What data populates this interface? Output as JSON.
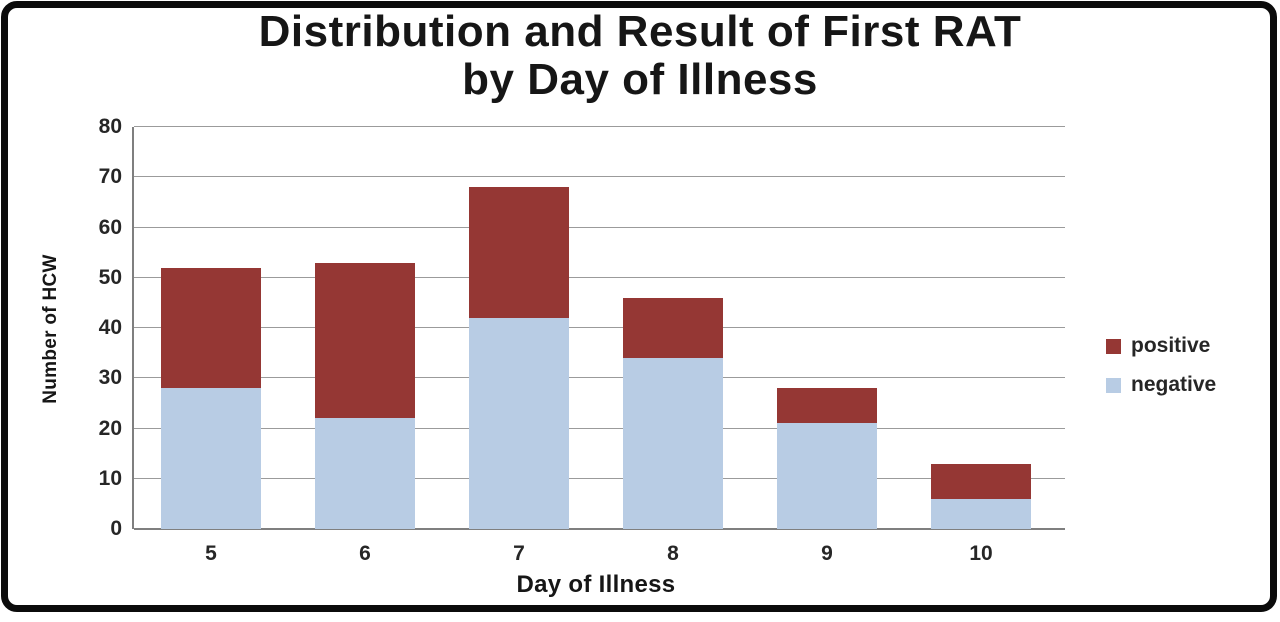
{
  "chart_data": {
    "type": "bar",
    "stacked": true,
    "title_lines": [
      "Distribution and Result of First RAT",
      "by Day of Illness"
    ],
    "xlabel": "Day of Illness",
    "ylabel": "Number of HCW",
    "categories": [
      "5",
      "6",
      "7",
      "8",
      "9",
      "10"
    ],
    "series": [
      {
        "name": "positive",
        "color": "#953734",
        "values": [
          24,
          31,
          26,
          12,
          7,
          7
        ]
      },
      {
        "name": "negative",
        "color": "#B8CCE4",
        "values": [
          28,
          22,
          42,
          34,
          21,
          6
        ]
      }
    ],
    "stack_bottom_to_top": [
      "negative",
      "positive"
    ],
    "totals": [
      52,
      53,
      68,
      46,
      28,
      13
    ],
    "ylim": [
      0,
      80
    ],
    "ytick_step": 10,
    "grid": true,
    "gridline_color": "#9b9b9b",
    "axis_color": "#7f7f7f",
    "legend_position": "right"
  }
}
